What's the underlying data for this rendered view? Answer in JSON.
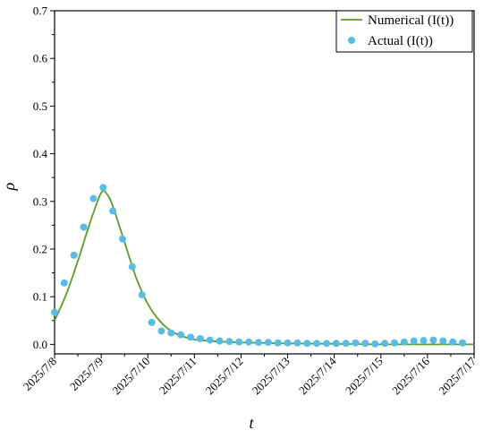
{
  "chart_data": {
    "type": "line",
    "xlabel": "t",
    "ylabel": "ρ",
    "xlim": [
      "2025/7/8",
      "2025/7/17"
    ],
    "ylim": [
      -0.02,
      0.7
    ],
    "x_ticks": [
      "2025/7/8",
      "2025/7/9",
      "2025/7/10",
      "2025/7/11",
      "2025/7/12",
      "2025/7/13",
      "2025/7/14",
      "2025/7/15",
      "2025/7/16",
      "2025/7/17"
    ],
    "y_ticks": [
      "0.0",
      "0.1",
      "0.2",
      "0.3",
      "0.4",
      "0.5",
      "0.6",
      "0.7"
    ],
    "grid": false,
    "legend_position": "top-right",
    "series": [
      {
        "name": "Numerical (I(t))",
        "kind": "line",
        "color": "#5a9e1e",
        "x": [
          "2025/7/8 00:00",
          "2025/7/8 06:00",
          "2025/7/8 12:00",
          "2025/7/8 18:00",
          "2025/7/9 00:00",
          "2025/7/9 03:00",
          "2025/7/9 06:00",
          "2025/7/9 12:00",
          "2025/7/9 18:00",
          "2025/7/10 00:00",
          "2025/7/10 06:00",
          "2025/7/10 12:00",
          "2025/7/10 18:00",
          "2025/7/11 00:00",
          "2025/7/11 12:00",
          "2025/7/12 00:00",
          "2025/7/12 12:00",
          "2025/7/13 00:00",
          "2025/7/14 00:00",
          "2025/7/15 00:00",
          "2025/7/16 00:00",
          "2025/7/17 00:00"
        ],
        "y": [
          0.05,
          0.105,
          0.175,
          0.252,
          0.318,
          0.315,
          0.29,
          0.215,
          0.14,
          0.085,
          0.05,
          0.028,
          0.017,
          0.01,
          0.006,
          0.004,
          0.003,
          0.002,
          0.001,
          0.0,
          0.0,
          0.0
        ]
      },
      {
        "name": "Actual (I(t))",
        "kind": "scatter",
        "color": "#55bde8",
        "x": [
          "2025/7/8 00:00",
          "2025/7/8 05:00",
          "2025/7/8 10:00",
          "2025/7/8 15:00",
          "2025/7/8 20:00",
          "2025/7/9 01:00",
          "2025/7/9 06:00",
          "2025/7/9 11:00",
          "2025/7/9 16:00",
          "2025/7/9 21:00",
          "2025/7/10 02:00",
          "2025/7/10 07:00",
          "2025/7/10 12:00",
          "2025/7/10 17:00",
          "2025/7/10 22:00",
          "2025/7/11 03:00",
          "2025/7/11 08:00",
          "2025/7/11 13:00",
          "2025/7/11 18:00",
          "2025/7/11 23:00",
          "2025/7/12 04:00",
          "2025/7/12 09:00",
          "2025/7/12 14:00",
          "2025/7/12 19:00",
          "2025/7/13 00:00",
          "2025/7/13 05:00",
          "2025/7/13 10:00",
          "2025/7/13 15:00",
          "2025/7/13 20:00",
          "2025/7/14 01:00",
          "2025/7/14 06:00",
          "2025/7/14 11:00",
          "2025/7/14 16:00",
          "2025/7/14 21:00",
          "2025/7/15 02:00",
          "2025/7/15 07:00",
          "2025/7/15 12:00",
          "2025/7/15 17:00",
          "2025/7/15 22:00",
          "2025/7/16 03:00",
          "2025/7/16 08:00",
          "2025/7/16 13:00",
          "2025/7/16 18:00"
        ],
        "y": [
          0.067,
          0.129,
          0.187,
          0.246,
          0.306,
          0.329,
          0.28,
          0.221,
          0.163,
          0.104,
          0.046,
          0.028,
          0.024,
          0.02,
          0.015,
          0.012,
          0.009,
          0.007,
          0.006,
          0.005,
          0.005,
          0.004,
          0.004,
          0.003,
          0.003,
          0.003,
          0.002,
          0.002,
          0.002,
          0.002,
          0.002,
          0.003,
          0.002,
          0.001,
          0.002,
          0.003,
          0.005,
          0.007,
          0.008,
          0.009,
          0.007,
          0.005,
          0.003
        ]
      }
    ]
  }
}
